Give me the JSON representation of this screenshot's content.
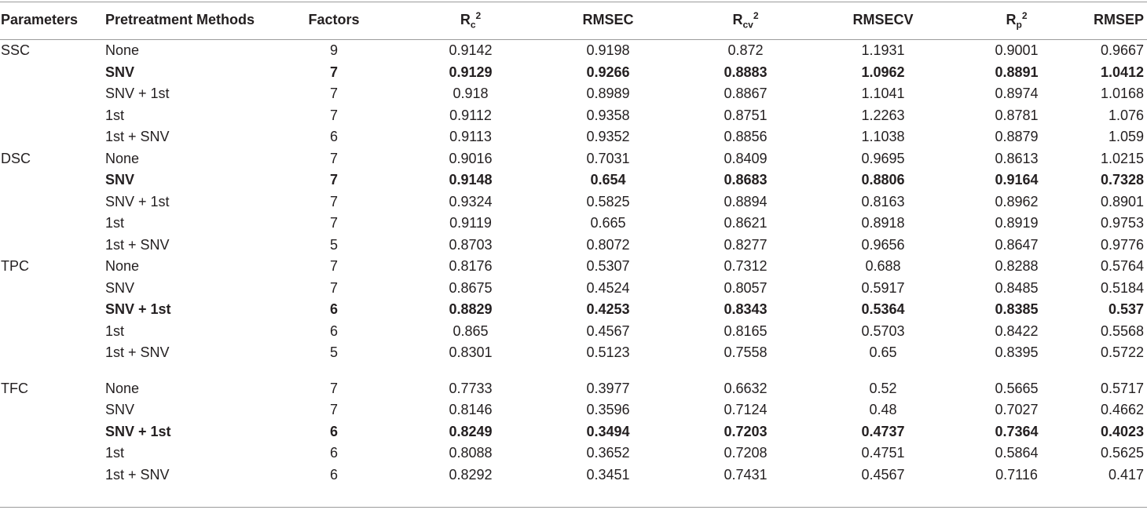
{
  "headers": {
    "parameters": "Parameters",
    "pretreatment": "Pretreatment Methods",
    "factors": "Factors",
    "rc2": {
      "base": "R",
      "sub": "c",
      "sup": "2"
    },
    "rmsec": "RMSEC",
    "rcv2": {
      "base": "R",
      "sub": "cv",
      "sup": "2"
    },
    "rmsecv": "RMSECV",
    "rp2": {
      "base": "R",
      "sub": "p",
      "sup": "2"
    },
    "rmsep": "RMSEP"
  },
  "groups": [
    {
      "parameter": "SSC",
      "rows": [
        {
          "method": "None",
          "factors": "9",
          "rc2": "0.9142",
          "rmsec": "0.9198",
          "rcv2": "0.872",
          "rmsecv": "1.1931",
          "rp2": "0.9001",
          "rmsep": "0.9667",
          "bold": false
        },
        {
          "method": "SNV",
          "factors": "7",
          "rc2": "0.9129",
          "rmsec": "0.9266",
          "rcv2": "0.8883",
          "rmsecv": "1.0962",
          "rp2": "0.8891",
          "rmsep": "1.0412",
          "bold": true
        },
        {
          "method": "SNV + 1st",
          "factors": "7",
          "rc2": "0.918",
          "rmsec": "0.8989",
          "rcv2": "0.8867",
          "rmsecv": "1.1041",
          "rp2": "0.8974",
          "rmsep": "1.0168",
          "bold": false
        },
        {
          "method": "1st",
          "factors": "7",
          "rc2": "0.9112",
          "rmsec": "0.9358",
          "rcv2": "0.8751",
          "rmsecv": "1.2263",
          "rp2": "0.8781",
          "rmsep": "1.076",
          "bold": false
        },
        {
          "method": "1st + SNV",
          "factors": "6",
          "rc2": "0.9113",
          "rmsec": "0.9352",
          "rcv2": "0.8856",
          "rmsecv": "1.1038",
          "rp2": "0.8879",
          "rmsep": "1.059",
          "bold": false
        }
      ]
    },
    {
      "parameter": "DSC",
      "rows": [
        {
          "method": "None",
          "factors": "7",
          "rc2": "0.9016",
          "rmsec": "0.7031",
          "rcv2": "0.8409",
          "rmsecv": "0.9695",
          "rp2": "0.8613",
          "rmsep": "1.0215",
          "bold": false
        },
        {
          "method": "SNV",
          "factors": "7",
          "rc2": "0.9148",
          "rmsec": "0.654",
          "rcv2": "0.8683",
          "rmsecv": "0.8806",
          "rp2": "0.9164",
          "rmsep": "0.7328",
          "bold": true
        },
        {
          "method": "SNV + 1st",
          "factors": "7",
          "rc2": "0.9324",
          "rmsec": "0.5825",
          "rcv2": "0.8894",
          "rmsecv": "0.8163",
          "rp2": "0.8962",
          "rmsep": "0.8901",
          "bold": false
        },
        {
          "method": "1st",
          "factors": "7",
          "rc2": "0.9119",
          "rmsec": "0.665",
          "rcv2": "0.8621",
          "rmsecv": "0.8918",
          "rp2": "0.8919",
          "rmsep": "0.9753",
          "bold": false
        },
        {
          "method": "1st + SNV",
          "factors": "5",
          "rc2": "0.8703",
          "rmsec": "0.8072",
          "rcv2": "0.8277",
          "rmsecv": "0.9656",
          "rp2": "0.8647",
          "rmsep": "0.9776",
          "bold": false
        }
      ]
    },
    {
      "parameter": "TPC",
      "rows": [
        {
          "method": "None",
          "factors": "7",
          "rc2": "0.8176",
          "rmsec": "0.5307",
          "rcv2": "0.7312",
          "rmsecv": "0.688",
          "rp2": "0.8288",
          "rmsep": "0.5764",
          "bold": false
        },
        {
          "method": "SNV",
          "factors": "7",
          "rc2": "0.8675",
          "rmsec": "0.4524",
          "rcv2": "0.8057",
          "rmsecv": "0.5917",
          "rp2": "0.8485",
          "rmsep": "0.5184",
          "bold": false
        },
        {
          "method": "SNV + 1st",
          "factors": "6",
          "rc2": "0.8829",
          "rmsec": "0.4253",
          "rcv2": "0.8343",
          "rmsecv": "0.5364",
          "rp2": "0.8385",
          "rmsep": "0.537",
          "bold": true
        },
        {
          "method": "1st",
          "factors": "6",
          "rc2": "0.865",
          "rmsec": "0.4567",
          "rcv2": "0.8165",
          "rmsecv": "0.5703",
          "rp2": "0.8422",
          "rmsep": "0.5568",
          "bold": false
        },
        {
          "method": "1st + SNV",
          "factors": "5",
          "rc2": "0.8301",
          "rmsec": "0.5123",
          "rcv2": "0.7558",
          "rmsecv": "0.65",
          "rp2": "0.8395",
          "rmsep": "0.5722",
          "bold": false
        }
      ]
    },
    {
      "parameter": "TFC",
      "rows": [
        {
          "method": "None",
          "factors": "7",
          "rc2": "0.7733",
          "rmsec": "0.3977",
          "rcv2": "0.6632",
          "rmsecv": "0.52",
          "rp2": "0.5665",
          "rmsep": "0.5717",
          "bold": false
        },
        {
          "method": "SNV",
          "factors": "7",
          "rc2": "0.8146",
          "rmsec": "0.3596",
          "rcv2": "0.7124",
          "rmsecv": "0.48",
          "rp2": "0.7027",
          "rmsep": "0.4662",
          "bold": false
        },
        {
          "method": "SNV + 1st",
          "factors": "6",
          "rc2": "0.8249",
          "rmsec": "0.3494",
          "rcv2": "0.7203",
          "rmsecv": "0.4737",
          "rp2": "0.7364",
          "rmsep": "0.4023",
          "bold": true
        },
        {
          "method": "1st",
          "factors": "6",
          "rc2": "0.8088",
          "rmsec": "0.3652",
          "rcv2": "0.7208",
          "rmsecv": "0.4751",
          "rp2": "0.5864",
          "rmsep": "0.5625",
          "bold": false
        },
        {
          "method": "1st + SNV",
          "factors": "6",
          "rc2": "0.8292",
          "rmsec": "0.3451",
          "rcv2": "0.7431",
          "rmsecv": "0.4567",
          "rp2": "0.7116",
          "rmsep": "0.417",
          "bold": false
        }
      ]
    }
  ]
}
